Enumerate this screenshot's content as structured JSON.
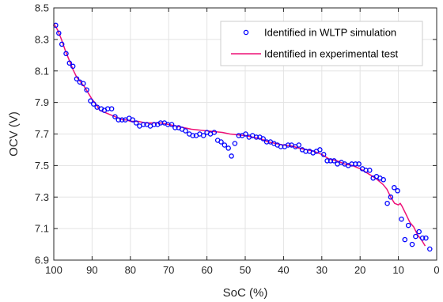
{
  "chart_data": {
    "type": "scatter",
    "title": "",
    "xlabel": "SoC (%)",
    "ylabel": "OCV (V)",
    "xlim": [
      100,
      0
    ],
    "ylim": [
      6.9,
      8.5
    ],
    "x_reversed": true,
    "xticks": [
      100,
      90,
      80,
      70,
      60,
      50,
      40,
      30,
      20,
      10,
      0
    ],
    "yticks": [
      6.9,
      7.1,
      7.3,
      7.5,
      7.7,
      7.9,
      8.1,
      8.3,
      8.5
    ],
    "ytick_labels": [
      "6.9",
      "7.1",
      "7.3",
      "7.5",
      "7.7",
      "7.9",
      "8.1",
      "8.3",
      "8.5"
    ],
    "grid": true,
    "legend_position": "top-right",
    "series": [
      {
        "name": "Identified in WLTP simulation",
        "kind": "scatter",
        "marker": "circle-open",
        "color": "#0000ff",
        "points": [
          [
            99.5,
            8.39
          ],
          [
            98.7,
            8.34
          ],
          [
            97.9,
            8.27
          ],
          [
            96.8,
            8.21
          ],
          [
            95.9,
            8.15
          ],
          [
            95.0,
            8.13
          ],
          [
            94.0,
            8.05
          ],
          [
            93.2,
            8.03
          ],
          [
            92.3,
            8.02
          ],
          [
            91.4,
            7.98
          ],
          [
            90.4,
            7.91
          ],
          [
            89.6,
            7.89
          ],
          [
            88.7,
            7.87
          ],
          [
            87.6,
            7.86
          ],
          [
            86.8,
            7.85
          ],
          [
            85.9,
            7.86
          ],
          [
            84.9,
            7.86
          ],
          [
            84.0,
            7.81
          ],
          [
            83.1,
            7.79
          ],
          [
            82.2,
            7.79
          ],
          [
            81.3,
            7.79
          ],
          [
            80.3,
            7.8
          ],
          [
            79.4,
            7.79
          ],
          [
            78.5,
            7.77
          ],
          [
            77.6,
            7.75
          ],
          [
            76.6,
            7.76
          ],
          [
            75.7,
            7.76
          ],
          [
            74.8,
            7.75
          ],
          [
            73.8,
            7.76
          ],
          [
            72.9,
            7.76
          ],
          [
            72.1,
            7.77
          ],
          [
            71.1,
            7.77
          ],
          [
            70.2,
            7.76
          ],
          [
            69.2,
            7.76
          ],
          [
            68.3,
            7.74
          ],
          [
            67.4,
            7.74
          ],
          [
            66.5,
            7.73
          ],
          [
            65.6,
            7.72
          ],
          [
            64.6,
            7.7
          ],
          [
            63.7,
            7.69
          ],
          [
            62.8,
            7.69
          ],
          [
            61.9,
            7.7
          ],
          [
            60.9,
            7.69
          ],
          [
            60.0,
            7.71
          ],
          [
            59.1,
            7.7
          ],
          [
            58.1,
            7.71
          ],
          [
            57.2,
            7.66
          ],
          [
            56.3,
            7.65
          ],
          [
            55.4,
            7.63
          ],
          [
            54.4,
            7.61
          ],
          [
            53.6,
            7.56
          ],
          [
            52.7,
            7.64
          ],
          [
            51.7,
            7.69
          ],
          [
            50.8,
            7.69
          ],
          [
            49.9,
            7.7
          ],
          [
            49.0,
            7.68
          ],
          [
            48.1,
            7.69
          ],
          [
            47.1,
            7.68
          ],
          [
            46.2,
            7.68
          ],
          [
            45.3,
            7.67
          ],
          [
            44.4,
            7.65
          ],
          [
            43.4,
            7.65
          ],
          [
            42.5,
            7.64
          ],
          [
            41.6,
            7.63
          ],
          [
            40.7,
            7.62
          ],
          [
            39.7,
            7.62
          ],
          [
            38.8,
            7.63
          ],
          [
            37.9,
            7.63
          ],
          [
            36.9,
            7.62
          ],
          [
            36.0,
            7.63
          ],
          [
            35.1,
            7.6
          ],
          [
            34.2,
            7.59
          ],
          [
            33.2,
            7.59
          ],
          [
            32.3,
            7.58
          ],
          [
            31.4,
            7.59
          ],
          [
            30.5,
            7.6
          ],
          [
            29.5,
            7.57
          ],
          [
            28.6,
            7.53
          ],
          [
            27.7,
            7.53
          ],
          [
            26.8,
            7.53
          ],
          [
            25.9,
            7.51
          ],
          [
            24.9,
            7.52
          ],
          [
            24.0,
            7.51
          ],
          [
            23.1,
            7.5
          ],
          [
            22.2,
            7.51
          ],
          [
            21.2,
            7.51
          ],
          [
            20.3,
            7.51
          ],
          [
            19.4,
            7.48
          ],
          [
            18.5,
            7.47
          ],
          [
            17.5,
            7.47
          ],
          [
            16.6,
            7.42
          ],
          [
            15.7,
            7.43
          ],
          [
            14.8,
            7.42
          ],
          [
            13.9,
            7.41
          ],
          [
            12.9,
            7.26
          ],
          [
            12.0,
            7.3
          ],
          [
            11.1,
            7.36
          ],
          [
            10.2,
            7.34
          ],
          [
            9.2,
            7.16
          ],
          [
            8.3,
            7.03
          ],
          [
            7.4,
            7.12
          ],
          [
            6.4,
            7.0
          ],
          [
            5.5,
            7.05
          ],
          [
            4.6,
            7.08
          ],
          [
            3.7,
            7.04
          ],
          [
            2.8,
            7.04
          ],
          [
            1.8,
            6.97
          ]
        ]
      },
      {
        "name": "Identified in experimental test",
        "kind": "line",
        "color": "#ee1177",
        "points": [
          [
            100,
            8.4
          ],
          [
            99,
            8.36
          ],
          [
            98,
            8.3
          ],
          [
            97,
            8.23
          ],
          [
            96,
            8.17
          ],
          [
            95,
            8.11
          ],
          [
            94,
            8.06
          ],
          [
            93,
            8.03
          ],
          [
            92,
            8.0
          ],
          [
            91,
            7.96
          ],
          [
            90,
            7.92
          ],
          [
            89,
            7.89
          ],
          [
            88,
            7.85
          ],
          [
            87,
            7.84
          ],
          [
            86,
            7.83
          ],
          [
            85,
            7.82
          ],
          [
            84,
            7.81
          ],
          [
            83,
            7.8
          ],
          [
            82,
            7.79
          ],
          [
            81,
            7.79
          ],
          [
            80,
            7.78
          ],
          [
            78,
            7.78
          ],
          [
            76,
            7.77
          ],
          [
            74,
            7.77
          ],
          [
            72,
            7.77
          ],
          [
            70,
            7.76
          ],
          [
            68,
            7.75
          ],
          [
            66,
            7.74
          ],
          [
            64,
            7.73
          ],
          [
            62,
            7.725
          ],
          [
            60,
            7.72
          ],
          [
            58,
            7.715
          ],
          [
            56,
            7.71
          ],
          [
            54,
            7.7
          ],
          [
            52,
            7.695
          ],
          [
            50,
            7.69
          ],
          [
            48,
            7.68
          ],
          [
            46,
            7.67
          ],
          [
            44,
            7.65
          ],
          [
            42,
            7.64
          ],
          [
            40,
            7.63
          ],
          [
            38,
            7.625
          ],
          [
            36,
            7.61
          ],
          [
            34,
            7.6
          ],
          [
            32,
            7.59
          ],
          [
            30,
            7.57
          ],
          [
            28,
            7.54
          ],
          [
            26,
            7.53
          ],
          [
            24,
            7.51
          ],
          [
            22,
            7.5
          ],
          [
            20,
            7.48
          ],
          [
            18,
            7.45
          ],
          [
            16,
            7.42
          ],
          [
            14,
            7.38
          ],
          [
            13,
            7.35
          ],
          [
            12,
            7.3
          ],
          [
            11,
            7.26
          ],
          [
            10,
            7.25
          ],
          [
            9.5,
            7.26
          ],
          [
            9,
            7.24
          ],
          [
            8,
            7.19
          ],
          [
            7,
            7.14
          ],
          [
            6,
            7.11
          ],
          [
            5,
            7.06
          ],
          [
            4,
            7.03
          ],
          [
            3,
            6.99
          ]
        ]
      }
    ]
  }
}
